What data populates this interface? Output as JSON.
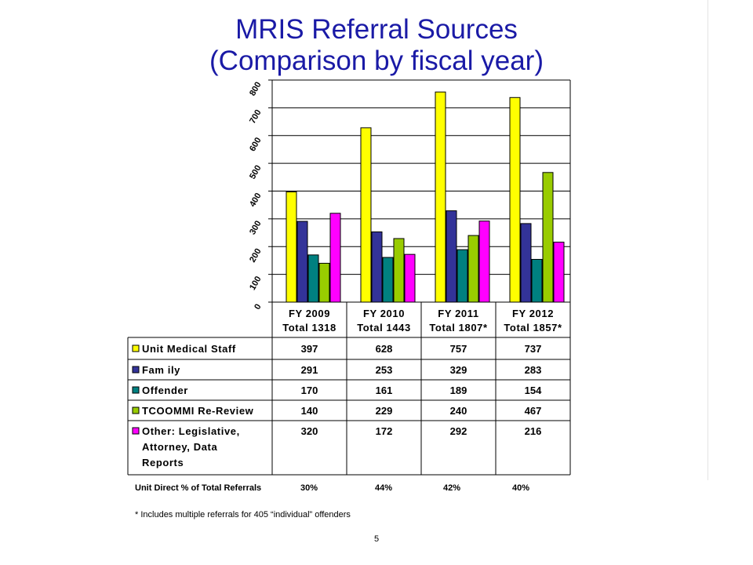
{
  "title": {
    "line1": "MRIS Referral Sources",
    "line2": "(Comparison by fiscal year)"
  },
  "chart_data": {
    "type": "bar",
    "categories": [
      [
        "FY 2009",
        "Total 1318"
      ],
      [
        "FY 2010",
        "Total 1443"
      ],
      [
        "FY 2011",
        "Total 1807*"
      ],
      [
        "FY 2012",
        "Total 1857*"
      ]
    ],
    "ylim": [
      0,
      800
    ],
    "yticks": [
      "0",
      "100",
      "200",
      "300",
      "400",
      "500",
      "600",
      "700",
      "800"
    ],
    "grid": true,
    "legend": "table-below",
    "series": [
      {
        "name": "Unit Medical Staff",
        "label_lines": [
          "Unit Medical Staff"
        ],
        "color": "#ffff00",
        "values": [
          397,
          628,
          757,
          737
        ]
      },
      {
        "name": "Family",
        "label_lines": [
          "Fam ily"
        ],
        "color": "#333399",
        "values": [
          291,
          253,
          329,
          283
        ]
      },
      {
        "name": "Offender",
        "label_lines": [
          "Offender"
        ],
        "color": "#008080",
        "values": [
          170,
          161,
          189,
          154
        ]
      },
      {
        "name": "TCOOMMI Re-Review",
        "label_lines": [
          "TCOOMMI Re-Review"
        ],
        "color": "#99cc00",
        "values": [
          140,
          229,
          240,
          467
        ]
      },
      {
        "name": "Other: Legislative, Attorney, Data Reports",
        "label_lines": [
          "Other: Legislative,",
          "Attorney, Data",
          "Reports"
        ],
        "color": "#ff00ff",
        "values": [
          320,
          172,
          292,
          216
        ]
      }
    ]
  },
  "footer": {
    "direct_label": "Unit Direct % of Total Referrals",
    "percents": [
      "30%",
      "44%",
      "42%",
      "40%"
    ],
    "note": "* Includes multiple referrals for 405 “individual” offenders",
    "page_number": "5"
  }
}
